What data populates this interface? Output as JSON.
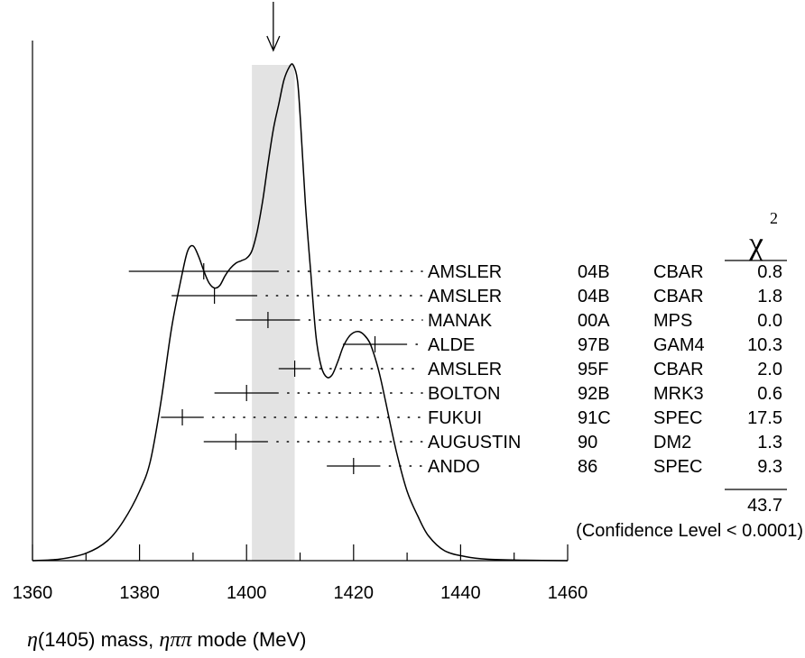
{
  "chart_data": {
    "type": "ideogram",
    "x_axis": {
      "label_parts": [
        {
          "text": "η",
          "italic": true
        },
        {
          "text": "(1405) mass, ",
          "italic": false
        },
        {
          "text": "ηππ",
          "italic": true
        },
        {
          "text": " mode (MeV)",
          "italic": false
        }
      ],
      "range": [
        1360,
        1460
      ],
      "major_ticks": [
        1360,
        1380,
        1400,
        1420,
        1440,
        1460
      ],
      "minor_ticks": [
        1370,
        1390,
        1410,
        1430,
        1450
      ]
    },
    "average_band": {
      "low": 1401,
      "high": 1409
    },
    "arrow_at": 1405,
    "chi_label": "χ",
    "chi_sup": "2",
    "measurements": [
      {
        "author": "AMSLER",
        "year": "04B",
        "experiment": "CBAR",
        "chi2": "0.8",
        "value": 1392,
        "err_low": 14,
        "err_high": 14
      },
      {
        "author": "AMSLER",
        "year": "04B",
        "experiment": "CBAR",
        "chi2": "1.8",
        "value": 1394,
        "err_low": 8,
        "err_high": 8
      },
      {
        "author": "MANAK",
        "year": "00A",
        "experiment": "MPS",
        "chi2": "0.0",
        "value": 1404,
        "err_low": 6,
        "err_high": 6
      },
      {
        "author": "ALDE",
        "year": "97B",
        "experiment": "GAM4",
        "chi2": "10.3",
        "value": 1424,
        "err_low": 6,
        "err_high": 6
      },
      {
        "author": "AMSLER",
        "year": "95F",
        "experiment": "CBAR",
        "chi2": "2.0",
        "value": 1409,
        "err_low": 3,
        "err_high": 3
      },
      {
        "author": "BOLTON",
        "year": "92B",
        "experiment": "MRK3",
        "chi2": "0.6",
        "value": 1400,
        "err_low": 6,
        "err_high": 6
      },
      {
        "author": "FUKUI",
        "year": "91C",
        "experiment": "SPEC",
        "chi2": "17.5",
        "value": 1388,
        "err_low": 4,
        "err_high": 4
      },
      {
        "author": "AUGUSTIN",
        "year": "90",
        "experiment": "DM2",
        "chi2": "1.3",
        "value": 1398,
        "err_low": 6,
        "err_high": 6
      },
      {
        "author": "ANDO",
        "year": "86",
        "experiment": "SPEC",
        "chi2": "9.3",
        "value": 1420,
        "err_low": 5,
        "err_high": 5
      }
    ],
    "chi2_total": "43.7",
    "confidence_level": "(Confidence Level < 0.0001)",
    "ideogram_curve": [
      [
        1360,
        0.0
      ],
      [
        1365,
        0.003
      ],
      [
        1370,
        0.015
      ],
      [
        1374,
        0.04
      ],
      [
        1377,
        0.08
      ],
      [
        1380,
        0.14
      ],
      [
        1382,
        0.2
      ],
      [
        1384,
        0.32
      ],
      [
        1386,
        0.47
      ],
      [
        1388,
        0.58
      ],
      [
        1389,
        0.625
      ],
      [
        1390,
        0.635
      ],
      [
        1391,
        0.615
      ],
      [
        1392,
        0.585
      ],
      [
        1393,
        0.56
      ],
      [
        1394,
        0.55
      ],
      [
        1395,
        0.555
      ],
      [
        1396,
        0.575
      ],
      [
        1397,
        0.59
      ],
      [
        1398,
        0.6
      ],
      [
        1399,
        0.605
      ],
      [
        1400,
        0.61
      ],
      [
        1401,
        0.625
      ],
      [
        1402,
        0.665
      ],
      [
        1403,
        0.725
      ],
      [
        1404,
        0.8
      ],
      [
        1405,
        0.87
      ],
      [
        1406,
        0.92
      ],
      [
        1407,
        0.97
      ],
      [
        1408,
        0.996
      ],
      [
        1408.7,
        1.0
      ],
      [
        1409.5,
        0.97
      ],
      [
        1410,
        0.9
      ],
      [
        1411,
        0.72
      ],
      [
        1412,
        0.58
      ],
      [
        1413,
        0.45
      ],
      [
        1414,
        0.39
      ],
      [
        1415,
        0.37
      ],
      [
        1416,
        0.375
      ],
      [
        1417,
        0.4
      ],
      [
        1418,
        0.43
      ],
      [
        1419,
        0.45
      ],
      [
        1420,
        0.46
      ],
      [
        1421,
        0.462
      ],
      [
        1422,
        0.455
      ],
      [
        1423,
        0.44
      ],
      [
        1424,
        0.41
      ],
      [
        1425,
        0.37
      ],
      [
        1426,
        0.32
      ],
      [
        1428,
        0.22
      ],
      [
        1430,
        0.14
      ],
      [
        1432,
        0.09
      ],
      [
        1434,
        0.05
      ],
      [
        1437,
        0.02
      ],
      [
        1441,
        0.008
      ],
      [
        1445,
        0.003
      ],
      [
        1452,
        0.001
      ],
      [
        1460,
        0.0
      ]
    ]
  }
}
